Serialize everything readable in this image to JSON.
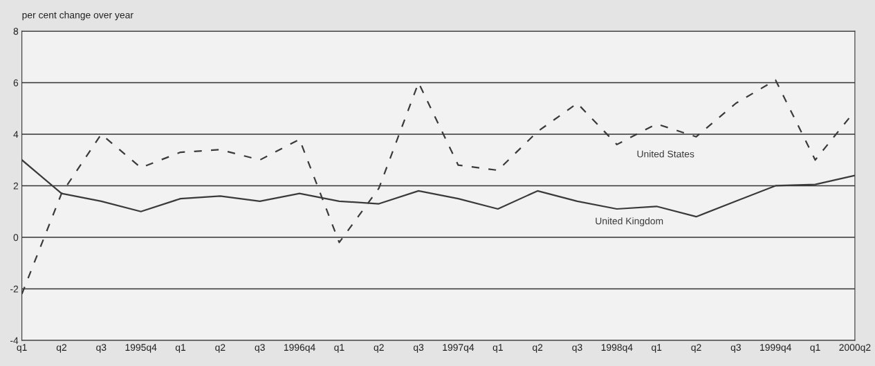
{
  "chart_data": {
    "type": "line",
    "ylabel": "per cent change over year",
    "categories": [
      "q1",
      "q2",
      "q3",
      "1995q4",
      "q1",
      "q2",
      "q3",
      "1996q4",
      "q1",
      "q2",
      "q3",
      "1997q4",
      "q1",
      "q2",
      "q3",
      "1998q4",
      "q1",
      "q2",
      "q3",
      "1999q4",
      "q1",
      "2000q2"
    ],
    "series": [
      {
        "name": "United States",
        "color": "#3a3a3a",
        "line_style": "dashed",
        "values": [
          -2.2,
          1.7,
          4.0,
          2.7,
          3.3,
          3.4,
          3.0,
          3.8,
          -0.2,
          1.9,
          6.0,
          2.8,
          2.6,
          4.1,
          5.2,
          3.6,
          4.4,
          3.9,
          5.2,
          6.1,
          3.0,
          4.9
        ]
      },
      {
        "name": "United Kingdom",
        "color": "#3a3a3a",
        "line_style": "solid",
        "values": [
          3.0,
          1.7,
          1.4,
          1.0,
          1.5,
          1.6,
          1.4,
          1.7,
          1.4,
          1.3,
          1.8,
          1.5,
          1.1,
          1.8,
          1.4,
          1.1,
          1.2,
          0.8,
          1.4,
          2.0,
          2.05,
          2.4
        ]
      }
    ],
    "ylim": [
      -4,
      8
    ],
    "yticks": [
      -4,
      -2,
      0,
      2,
      4,
      6,
      8
    ],
    "grid": "y",
    "legend": false
  }
}
